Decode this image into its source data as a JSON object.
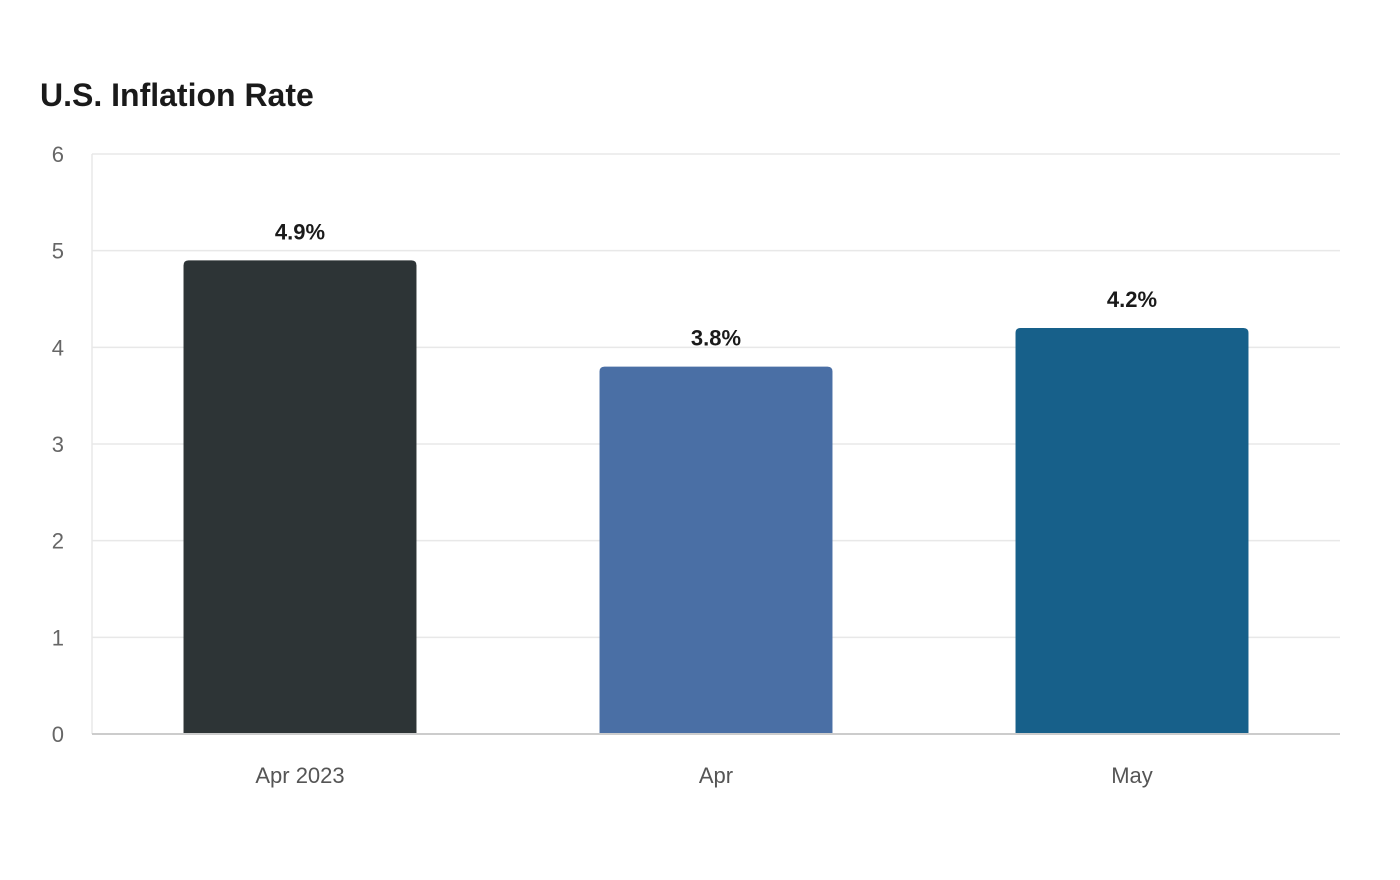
{
  "chart_data": {
    "type": "bar",
    "title": "U.S. Inflation Rate",
    "categories": [
      "Apr 2023",
      "Apr",
      "May"
    ],
    "values": [
      4.9,
      3.8,
      4.2
    ],
    "data_labels": [
      "4.9%",
      "3.8%",
      "4.2%"
    ],
    "bar_colors": [
      "#2d3436",
      "#4a6fa5",
      "#17608a"
    ],
    "ylim": [
      0,
      6
    ],
    "yticks": [
      0,
      1,
      2,
      3,
      4,
      5,
      6
    ],
    "xlabel": "",
    "ylabel": "",
    "grid": true,
    "legend": "none"
  },
  "colors": {
    "grid": "#e8e8e8",
    "axis": "#cccccc"
  }
}
